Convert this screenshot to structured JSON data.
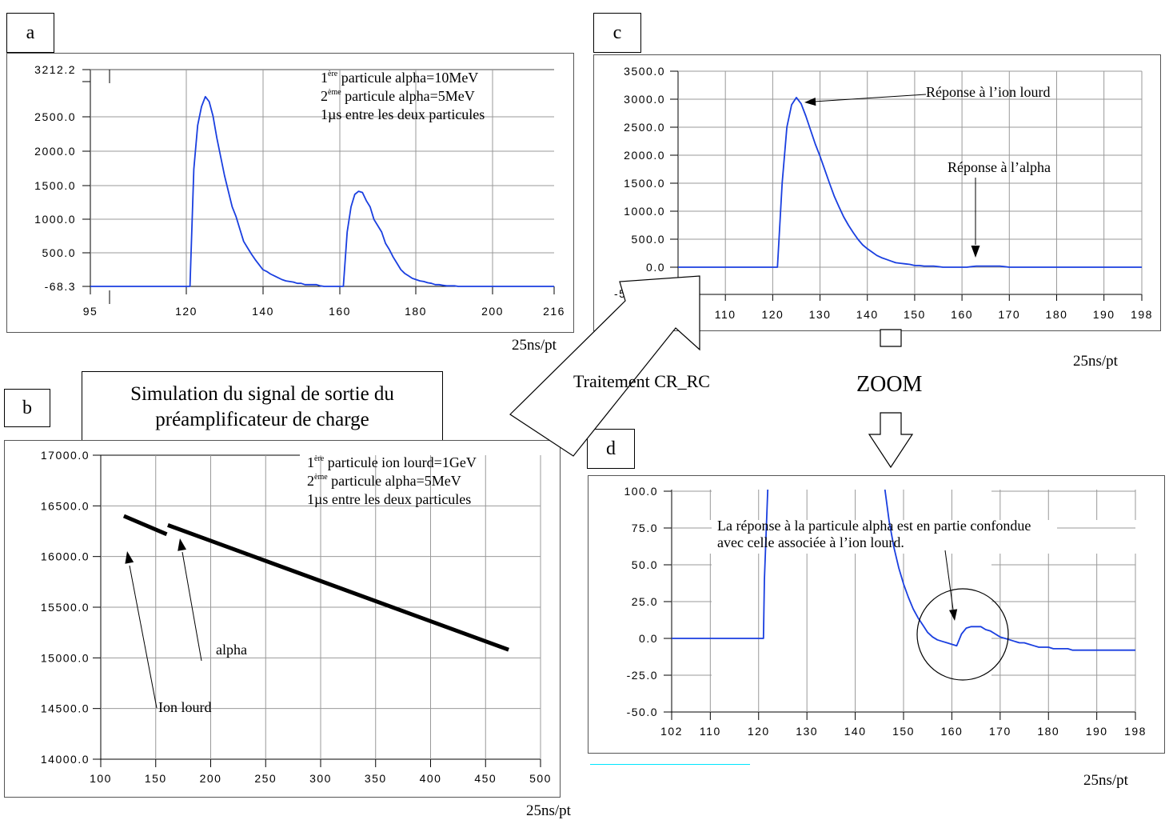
{
  "title_box": {
    "line1": "Simulation du signal de sortie du",
    "line2": "préamplificateur de charge"
  },
  "big_arrow_label": "Traitement CR_RC",
  "zoom_label": "ZOOM",
  "unit_label": "25ns/pt",
  "colors": {
    "curve": "#1a3fe0",
    "grid": "#999999",
    "panel_b_curve": "#000000"
  },
  "chart_data": [
    {
      "panel": "a",
      "type": "line",
      "xlim": [
        95,
        216
      ],
      "ylim": [
        -68.3,
        3212.2
      ],
      "x_ticks": [
        "95",
        "120",
        "140",
        "160",
        "180",
        "200",
        "216"
      ],
      "y_ticks": [
        "3212.2",
        "2500.0",
        "2000.0",
        "1500.0",
        "1000.0",
        "500.0",
        "-68.3"
      ],
      "xlabel": "25ns/pt",
      "annotation": [
        {
          "pre": "1",
          "sup": "ère",
          "post": " particule alpha=10MeV"
        },
        {
          "pre": "2",
          "sup": "ème",
          "post": " particule alpha=5MeV"
        },
        {
          "pre": "1µs entre les deux particules",
          "sup": "",
          "post": ""
        }
      ],
      "series": [
        {
          "x": [
            95,
            121,
            122,
            123,
            124,
            125,
            126,
            127,
            128,
            129,
            130,
            131,
            132,
            133,
            134,
            135,
            136,
            137,
            138,
            139,
            140,
            141,
            142,
            143,
            144,
            145,
            146,
            147,
            148,
            149,
            150,
            151,
            152,
            153,
            154,
            155,
            156,
            157,
            158,
            159,
            160,
            161,
            162,
            163,
            164,
            165,
            166,
            167,
            168,
            169,
            170,
            171,
            172,
            173,
            174,
            175,
            176,
            177,
            178,
            179,
            180,
            181,
            182,
            183,
            184,
            185,
            186,
            187,
            188,
            189,
            190,
            191,
            192,
            193,
            194,
            195,
            216
          ],
          "y": [
            -68.3,
            -68.3,
            1800,
            2500,
            2800,
            2960,
            2880,
            2650,
            2300,
            2000,
            1700,
            1450,
            1200,
            1050,
            850,
            650,
            550,
            450,
            360,
            280,
            200,
            170,
            130,
            100,
            70,
            40,
            20,
            10,
            0,
            -20,
            -20,
            -40,
            -40,
            -40,
            -40,
            -60,
            -68.3,
            -68.3,
            -68.3,
            -68.3,
            -68.3,
            -68.3,
            800,
            1200,
            1400,
            1450,
            1430,
            1300,
            1200,
            1000,
            900,
            800,
            620,
            520,
            400,
            300,
            200,
            140,
            100,
            60,
            40,
            20,
            10,
            -10,
            -20,
            -40,
            -40,
            -50,
            -60,
            -60,
            -60,
            -68.3,
            -68.3,
            -68.3,
            -68.3,
            -68.3,
            -68.3
          ]
        }
      ]
    },
    {
      "panel": "b",
      "type": "line",
      "xlim": [
        100,
        500
      ],
      "ylim": [
        14000,
        17000
      ],
      "x_ticks": [
        "100",
        "150",
        "200",
        "250",
        "300",
        "350",
        "400",
        "450",
        "500"
      ],
      "y_ticks": [
        "17000.0",
        "16500.0",
        "16000.0",
        "15500.0",
        "15000.0",
        "14500.0",
        "14000.0"
      ],
      "xlabel": "25ns/pt",
      "annotation": [
        {
          "pre": "1",
          "sup": "ère",
          "post": " particule ion lourd=1GeV"
        },
        {
          "pre": "2",
          "sup": "ème",
          "post": " particule alpha=5MeV"
        },
        {
          "pre": "1µs entre les deux particules",
          "sup": "",
          "post": ""
        }
      ],
      "labels": {
        "alpha": "alpha",
        "ion": "Ion lourd"
      },
      "series": [
        {
          "name": "",
          "x": [
            121,
            160
          ],
          "y": [
            16400,
            16220
          ]
        },
        {
          "name": "",
          "x": [
            161,
            471
          ],
          "y": [
            16310,
            15080
          ]
        }
      ]
    },
    {
      "panel": "c",
      "type": "line",
      "xlim": [
        100,
        198
      ],
      "ylim": [
        -500,
        3500
      ],
      "x_ticks": [
        "110",
        "120",
        "130",
        "140",
        "150",
        "160",
        "170",
        "180",
        "190",
        "198"
      ],
      "x_tick_values": [
        110,
        120,
        130,
        140,
        150,
        160,
        170,
        180,
        190,
        198
      ],
      "y_ticks": [
        "3500.0",
        "3000.0",
        "2500.0",
        "2000.0",
        "1500.0",
        "1000.0",
        "500.0",
        "0.0"
      ],
      "y_partial_label": "-50",
      "xlabel": "25ns/pt",
      "labels": {
        "ion": "Réponse à l’ion lourd",
        "alpha": "Réponse à l’alpha"
      },
      "series": [
        {
          "x": [
            100,
            121,
            122,
            123,
            124,
            125,
            126,
            127,
            128,
            129,
            130,
            131,
            132,
            133,
            134,
            135,
            136,
            137,
            138,
            139,
            140,
            141,
            142,
            143,
            144,
            145,
            146,
            147,
            148,
            149,
            150,
            151,
            152,
            153,
            154,
            155,
            156,
            157,
            158,
            159,
            160,
            161,
            162,
            163,
            164,
            165,
            166,
            167,
            168,
            169,
            170,
            198
          ],
          "y": [
            0,
            0,
            1500,
            2500,
            2900,
            3030,
            2920,
            2700,
            2450,
            2200,
            1980,
            1740,
            1500,
            1270,
            1080,
            900,
            750,
            620,
            500,
            400,
            330,
            270,
            210,
            170,
            140,
            110,
            80,
            70,
            60,
            50,
            30,
            30,
            20,
            20,
            20,
            10,
            0,
            0,
            0,
            0,
            0,
            0,
            10,
            20,
            20,
            20,
            20,
            20,
            20,
            10,
            0,
            0
          ]
        }
      ]
    },
    {
      "panel": "d",
      "type": "line",
      "xlim": [
        102,
        198
      ],
      "ylim": [
        -50,
        100
      ],
      "x_ticks": [
        "102",
        "110",
        "120",
        "130",
        "140",
        "150",
        "160",
        "170",
        "180",
        "190",
        "198"
      ],
      "x_tick_values": [
        102,
        110,
        120,
        130,
        140,
        150,
        160,
        170,
        180,
        190,
        198
      ],
      "y_ticks": [
        "100.0",
        "75.0",
        "50.0",
        "25.0",
        "0.0",
        "-25.0",
        "-50.0"
      ],
      "xlabel": "25ns/pt",
      "annotation": [
        "La réponse à la particule alpha est en partie confondue",
        "avec celle associée à l’ion lourd."
      ],
      "series": [
        {
          "x": [
            102,
            121,
            121.2,
            122
          ],
          "y": [
            0,
            0,
            40,
            110
          ]
        },
        {
          "x": [
            146,
            147,
            148,
            149,
            150,
            151,
            152,
            153,
            154,
            155,
            156,
            157,
            158,
            159,
            160,
            161,
            162,
            163,
            164,
            165,
            166,
            167,
            168,
            169,
            170,
            171,
            172,
            173,
            174,
            175,
            176,
            177,
            178,
            179,
            180,
            181,
            182,
            183,
            184,
            185,
            186,
            187,
            188,
            198
          ],
          "y": [
            105,
            80,
            62,
            48,
            37,
            28,
            20,
            14,
            9,
            4,
            1,
            -1,
            -2,
            -3,
            -4,
            -5,
            3,
            7,
            8,
            8,
            8,
            6,
            5,
            3,
            1,
            0,
            -1,
            -2,
            -3,
            -3,
            -4,
            -5,
            -6,
            -6,
            -6,
            -7,
            -7,
            -7,
            -7,
            -8,
            -8,
            -8,
            -8,
            -8
          ]
        }
      ]
    }
  ]
}
